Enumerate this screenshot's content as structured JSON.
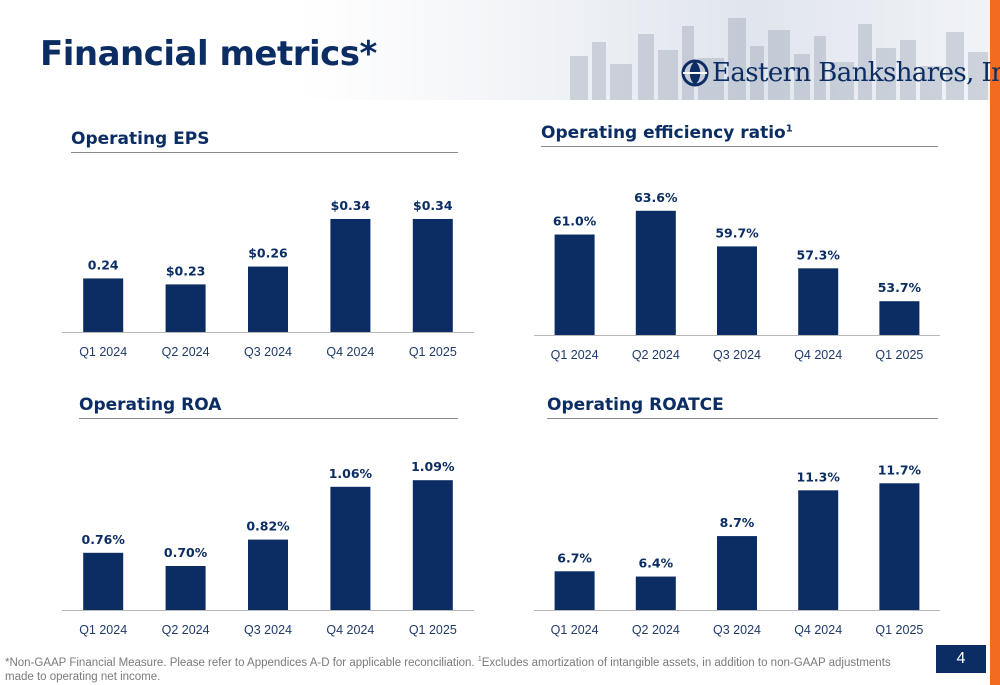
{
  "page": {
    "title": "Financial metrics*",
    "logo_text": "Eastern Bankshares, Inc.",
    "page_number": "4",
    "footnote_part1": "*Non-GAAP Financial Measure. Please refer to Appendices A-D for applicable reconciliation. ",
    "footnote_sup": "1",
    "footnote_part2": "Excludes amortization of intangible assets, in addition to non-GAAP adjustments made to operating net income.",
    "colors": {
      "brand_navy": "#0b2d63",
      "accent_orange": "#f26b21"
    }
  },
  "chart_data": [
    {
      "type": "bar",
      "title": "Operating EPS",
      "title_sup": "",
      "categories": [
        "Q1 2024",
        "Q2 2024",
        "Q3 2024",
        "Q4 2024",
        "Q1 2025"
      ],
      "values": [
        0.24,
        0.23,
        0.26,
        0.34,
        0.34
      ],
      "labels": [
        "0.24",
        "$0.23",
        "$0.26",
        "$0.34",
        "$0.34"
      ],
      "ylim": [
        0.15,
        0.35
      ]
    },
    {
      "type": "bar",
      "title": "Operating efficiency ratio",
      "title_sup": "1",
      "categories": [
        "Q1 2024",
        "Q2 2024",
        "Q3 2024",
        "Q4 2024",
        "Q1 2025"
      ],
      "values": [
        61.0,
        63.6,
        59.7,
        57.3,
        53.7
      ],
      "labels": [
        "61.0%",
        "63.6%",
        "59.7%",
        "57.3%",
        "53.7%"
      ],
      "ylim": [
        50,
        65
      ]
    },
    {
      "type": "bar",
      "title": "Operating ROA",
      "title_sup": "",
      "categories": [
        "Q1 2024",
        "Q2 2024",
        "Q3 2024",
        "Q4 2024",
        "Q1 2025"
      ],
      "values": [
        0.76,
        0.7,
        0.82,
        1.06,
        1.09
      ],
      "labels": [
        "0.76%",
        "0.70%",
        "0.82%",
        "1.06%",
        "1.09%"
      ],
      "ylim": [
        0.5,
        1.1
      ]
    },
    {
      "type": "bar",
      "title": "Operating ROATCE",
      "title_sup": "",
      "categories": [
        "Q1 2024",
        "Q2 2024",
        "Q3 2024",
        "Q4 2024",
        "Q1 2025"
      ],
      "values": [
        6.7,
        6.4,
        8.7,
        11.3,
        11.7
      ],
      "labels": [
        "6.7%",
        "6.4%",
        "8.7%",
        "11.3%",
        "11.7%"
      ],
      "ylim": [
        4.5,
        12
      ]
    }
  ]
}
